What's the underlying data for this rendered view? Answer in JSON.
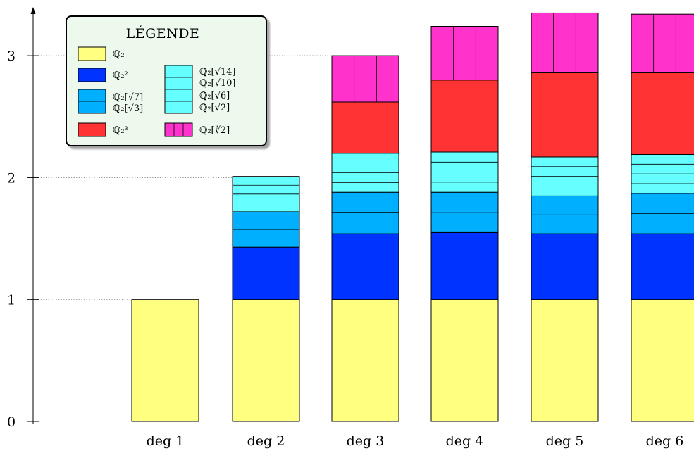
{
  "chart_data": {
    "type": "bar",
    "stacked": true,
    "categories": [
      "deg 1",
      "deg 2",
      "deg 3",
      "deg 4",
      "deg 5",
      "deg 6"
    ],
    "ylim": [
      0,
      3.3
    ],
    "yticks": [
      0,
      1,
      2,
      3
    ],
    "ytick_labels": [
      "0",
      "1",
      "2",
      "3"
    ],
    "gridlines": [
      1,
      2,
      3
    ],
    "legend": {
      "title": "Légende",
      "placement": "top-left",
      "entries": [
        {
          "key": "q2",
          "label": "ℚ₂"
        },
        {
          "key": "q4",
          "label": "ℚ₂²"
        },
        {
          "key": "sqrt_small",
          "label": "ℚ₂[√7]",
          "label2": "ℚ₂[√3]"
        },
        {
          "key": "q8",
          "label": "ℚ₂³"
        },
        {
          "key": "sqrt_big",
          "label": "ℚ₂[√14]",
          "label2": "ℚ₂[√10]",
          "label3": "ℚ₂[√6]",
          "label4": "ℚ₂[√2]"
        },
        {
          "key": "cbrt2",
          "label": "ℚ₂[∛2]"
        }
      ]
    },
    "series": [
      {
        "key": "q2",
        "color": "#ffff80",
        "subdivisions": 1,
        "values": [
          1.0,
          1.0,
          1.0,
          1.0,
          1.0,
          1.0
        ]
      },
      {
        "key": "q4",
        "color": "#0033ff",
        "subdivisions": 1,
        "values": [
          0,
          0.43,
          0.54,
          0.55,
          0.54,
          0.54
        ]
      },
      {
        "key": "sqrt_small",
        "color": "#00b0ff",
        "subdivisions": 2,
        "values": [
          0,
          0.29,
          0.34,
          0.33,
          0.31,
          0.33
        ]
      },
      {
        "key": "sqrt_big",
        "color": "#66ffff",
        "subdivisions": 4,
        "values": [
          0,
          0.29,
          0.32,
          0.33,
          0.32,
          0.32
        ]
      },
      {
        "key": "q8",
        "color": "#ff3333",
        "subdivisions": 1,
        "values": [
          0,
          0,
          0.42,
          0.59,
          0.69,
          0.67
        ]
      },
      {
        "key": "cbrt2",
        "color": "#ff33cc",
        "subdivisions": 3,
        "vertical": true,
        "values": [
          0,
          0,
          0.38,
          0.44,
          0.49,
          0.48
        ]
      }
    ]
  }
}
